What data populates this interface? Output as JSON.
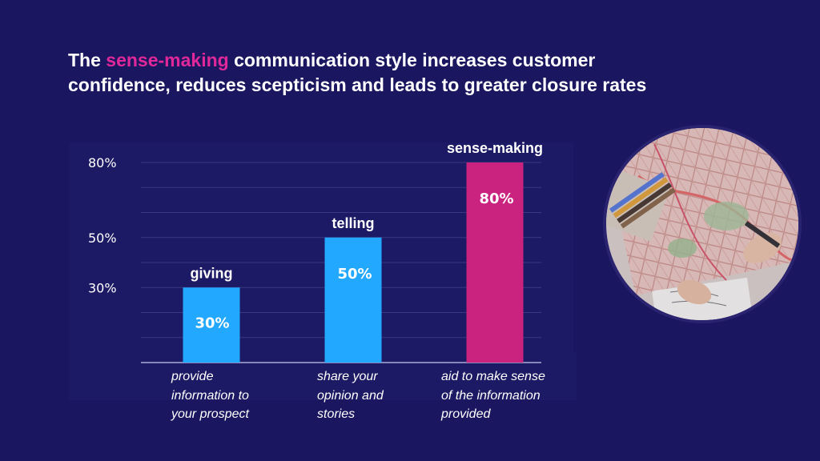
{
  "headline": {
    "prefix": "The ",
    "accent": "sense-making",
    "suffix": " communication style increases customer confidence, reduces scepticism and leads to greater closure rates"
  },
  "colors": {
    "background": "#1a1660",
    "accent": "#e0289a",
    "bar_blue": "#22a8ff",
    "bar_pink": "#c9227f"
  },
  "chart_data": {
    "type": "bar",
    "categories": [
      "giving",
      "telling",
      "sense-making"
    ],
    "values": [
      30,
      50,
      80
    ],
    "value_labels": [
      "30%",
      "50%",
      "80%"
    ],
    "ytick_values": [
      30,
      50,
      80
    ],
    "ytick_labels": [
      "30%",
      "50%",
      "80%"
    ],
    "ylim": [
      0,
      80
    ],
    "grid": true,
    "bar_colors": [
      "#22a8ff",
      "#22a8ff",
      "#c9227f"
    ],
    "descriptions": [
      [
        "provide",
        "information to",
        "your prospect"
      ],
      [
        "share your",
        "opinion and",
        "stories"
      ],
      [
        "aid to make sense",
        "of the information",
        "provided"
      ]
    ]
  },
  "photo": {
    "icon": "map-with-hands-photo"
  }
}
